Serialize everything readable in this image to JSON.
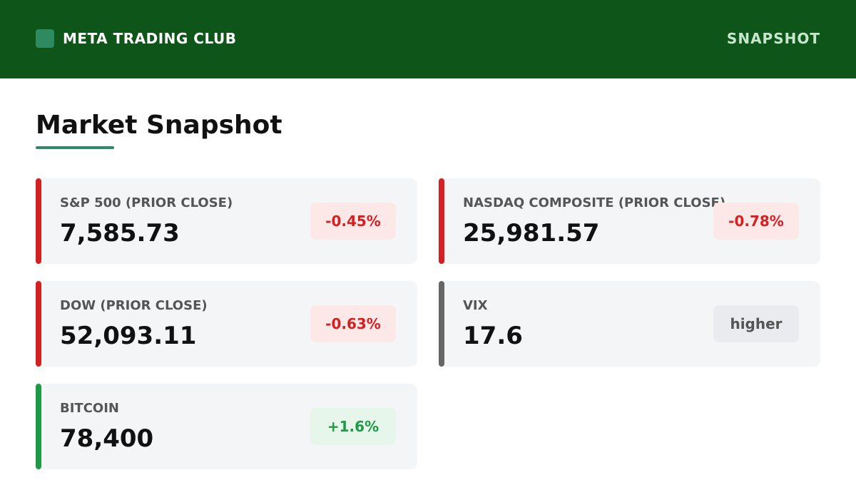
{
  "header": {
    "brand_name": "META TRADING CLUB",
    "logo_icon": "square-logo-icon",
    "nav_label": "SNAPSHOT",
    "background_color": "#0d5518"
  },
  "main": {
    "title": "Market Snapshot"
  },
  "cards": [
    {
      "label": "S&P 500 (PRIOR CLOSE)",
      "value": "7,585.73",
      "change": "-0.45%",
      "direction": "down"
    },
    {
      "label": "NASDAQ COMPOSITE (PRIOR CLOSE)",
      "value": "25,981.57",
      "change": "-0.78%",
      "direction": "down"
    },
    {
      "label": "DOW (PRIOR CLOSE)",
      "value": "52,093.11",
      "change": "-0.63%",
      "direction": "down"
    },
    {
      "label": "VIX",
      "value": "17.6",
      "change": "higher",
      "direction": "neutral"
    },
    {
      "label": "BITCOIN",
      "value": "78,400",
      "change": "+1.6%",
      "direction": "up"
    }
  ],
  "colors": {
    "negative": "#d42020",
    "positive": "#1e9a46",
    "neutral": "#666666",
    "accent": "#2e8b6a"
  }
}
